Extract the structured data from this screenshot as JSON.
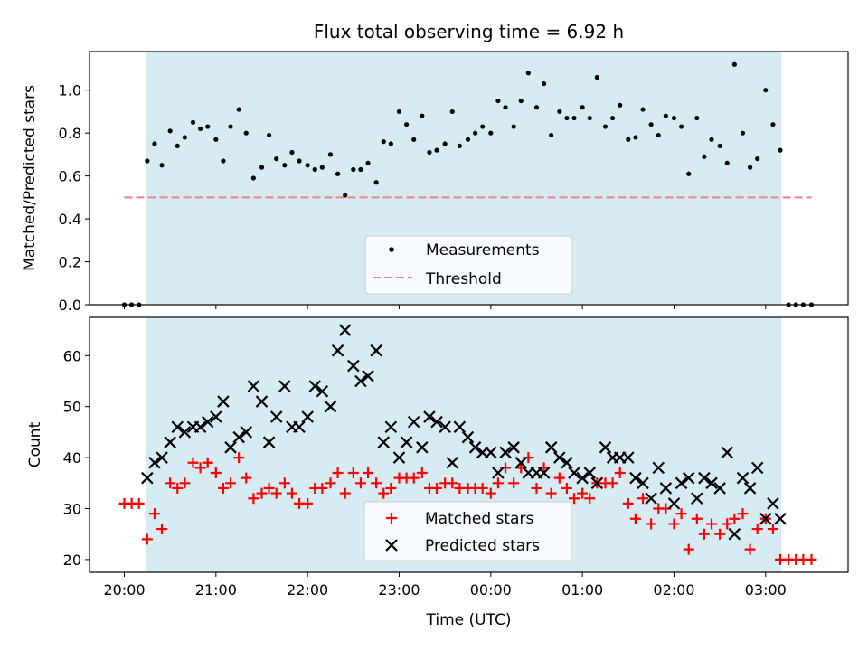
{
  "chart_data": [
    {
      "type": "scatter",
      "title": "Flux total observing time = 6.92 h",
      "xlabel": "",
      "ylabel": "Matched/Predicted stars",
      "ylim": [
        0.0,
        1.18
      ],
      "yticks": [
        0.0,
        0.2,
        0.4,
        0.6,
        0.8,
        1.0
      ],
      "ytick_labels": [
        "0.0",
        "0.2",
        "0.4",
        "0.6",
        "0.8",
        "1.0"
      ],
      "x_unit": "hours since 20:00 UTC",
      "xlim": [
        -0.38,
        7.9
      ],
      "grid": false,
      "legend_position": "lower-center",
      "shaded_region": {
        "x_start": 0.24,
        "x_end": 7.17,
        "color": "#add8e6"
      },
      "threshold": {
        "name": "Threshold",
        "value": 0.5,
        "x_start": 0.0,
        "x_end": 7.5,
        "color": "#f08080"
      },
      "series": [
        {
          "name": "Measurements",
          "color": "#000000",
          "marker": "dot",
          "x": [
            0.0,
            0.08,
            0.16,
            0.25,
            0.33,
            0.41,
            0.5,
            0.58,
            0.66,
            0.75,
            0.83,
            0.91,
            1.0,
            1.08,
            1.16,
            1.25,
            1.33,
            1.41,
            1.5,
            1.58,
            1.66,
            1.75,
            1.83,
            1.91,
            2.0,
            2.08,
            2.16,
            2.25,
            2.33,
            2.41,
            2.5,
            2.58,
            2.66,
            2.75,
            2.83,
            2.91,
            3.0,
            3.08,
            3.16,
            3.25,
            3.33,
            3.41,
            3.5,
            3.58,
            3.66,
            3.75,
            3.83,
            3.91,
            4.0,
            4.08,
            4.16,
            4.25,
            4.33,
            4.41,
            4.5,
            4.58,
            4.66,
            4.75,
            4.83,
            4.91,
            5.0,
            5.08,
            5.16,
            5.25,
            5.33,
            5.41,
            5.5,
            5.58,
            5.66,
            5.75,
            5.83,
            5.91,
            6.0,
            6.08,
            6.16,
            6.25,
            6.33,
            6.41,
            6.5,
            6.58,
            6.66,
            6.75,
            6.83,
            6.91,
            7.0,
            7.08,
            7.16,
            7.25,
            7.33,
            7.41,
            7.5
          ],
          "y": [
            0.0,
            0.0,
            0.0,
            0.67,
            0.75,
            0.65,
            0.81,
            0.74,
            0.78,
            0.85,
            0.82,
            0.83,
            0.77,
            0.67,
            0.83,
            0.91,
            0.8,
            0.59,
            0.64,
            0.79,
            0.68,
            0.65,
            0.71,
            0.67,
            0.65,
            0.63,
            0.64,
            0.7,
            0.61,
            0.51,
            0.63,
            0.63,
            0.66,
            0.57,
            0.76,
            0.75,
            0.9,
            0.84,
            0.77,
            0.88,
            0.71,
            0.72,
            0.75,
            0.9,
            0.74,
            0.77,
            0.8,
            0.83,
            0.8,
            0.95,
            0.92,
            0.83,
            0.95,
            1.08,
            0.92,
            1.03,
            0.79,
            0.9,
            0.87,
            0.87,
            0.92,
            0.87,
            1.06,
            0.83,
            0.87,
            0.93,
            0.77,
            0.78,
            0.91,
            0.84,
            0.79,
            0.88,
            0.87,
            0.83,
            0.61,
            0.87,
            0.69,
            0.77,
            0.74,
            0.66,
            1.12,
            0.8,
            0.64,
            0.68,
            1.0,
            0.84,
            0.72,
            0.0,
            0.0,
            0.0,
            0.0
          ]
        }
      ]
    },
    {
      "type": "scatter",
      "title": "",
      "xlabel": "Time (UTC)",
      "ylabel": "Count",
      "ylim": [
        17.5,
        67.5
      ],
      "yticks": [
        20,
        30,
        40,
        50,
        60
      ],
      "ytick_labels": [
        "20",
        "30",
        "40",
        "50",
        "60"
      ],
      "x_unit": "hours since 20:00 UTC",
      "xlim": [
        -0.38,
        7.9
      ],
      "xticks": [
        0,
        1,
        2,
        3,
        4,
        5,
        6,
        7
      ],
      "xtick_labels": [
        "20:00",
        "21:00",
        "22:00",
        "23:00",
        "00:00",
        "01:00",
        "02:00",
        "03:00"
      ],
      "grid": false,
      "legend_position": "lower-center",
      "shaded_region": {
        "x_start": 0.24,
        "x_end": 7.17,
        "color": "#add8e6"
      },
      "series": [
        {
          "name": "Matched stars",
          "color": "#ff0000",
          "marker": "plus",
          "x": [
            0.0,
            0.08,
            0.16,
            0.25,
            0.33,
            0.41,
            0.5,
            0.58,
            0.66,
            0.75,
            0.83,
            0.91,
            1.0,
            1.08,
            1.16,
            1.25,
            1.33,
            1.41,
            1.5,
            1.58,
            1.66,
            1.75,
            1.83,
            1.91,
            2.0,
            2.08,
            2.16,
            2.25,
            2.33,
            2.41,
            2.5,
            2.58,
            2.66,
            2.75,
            2.83,
            2.91,
            3.0,
            3.08,
            3.16,
            3.25,
            3.33,
            3.41,
            3.5,
            3.58,
            3.66,
            3.75,
            3.83,
            3.91,
            4.0,
            4.08,
            4.16,
            4.25,
            4.33,
            4.41,
            4.5,
            4.58,
            4.66,
            4.75,
            4.83,
            4.91,
            5.0,
            5.08,
            5.16,
            5.25,
            5.33,
            5.41,
            5.5,
            5.58,
            5.66,
            5.75,
            5.83,
            5.91,
            6.0,
            6.08,
            6.16,
            6.25,
            6.33,
            6.41,
            6.5,
            6.58,
            6.66,
            6.75,
            6.83,
            6.91,
            7.0,
            7.08,
            7.16,
            7.25,
            7.33,
            7.41,
            7.5
          ],
          "y": [
            31,
            31,
            31,
            24,
            29,
            26,
            35,
            34,
            35,
            39,
            38,
            39,
            37,
            34,
            35,
            40,
            36,
            32,
            33,
            34,
            33,
            35,
            33,
            31,
            31,
            34,
            34,
            35,
            37,
            33,
            37,
            35,
            37,
            35,
            33,
            34,
            36,
            36,
            36,
            37,
            34,
            34,
            35,
            35,
            34,
            34,
            34,
            34,
            33,
            35,
            38,
            35,
            38,
            40,
            34,
            38,
            33,
            36,
            34,
            32,
            33,
            32,
            35,
            35,
            35,
            37,
            31,
            28,
            32,
            27,
            30,
            30,
            27,
            29,
            22,
            28,
            25,
            27,
            25,
            27,
            28,
            29,
            22,
            26,
            28,
            26,
            20,
            20,
            20,
            20,
            20
          ]
        },
        {
          "name": "Predicted stars",
          "color": "#000000",
          "marker": "x",
          "x": [
            0.25,
            0.33,
            0.41,
            0.5,
            0.58,
            0.66,
            0.75,
            0.83,
            0.91,
            1.0,
            1.08,
            1.16,
            1.25,
            1.33,
            1.41,
            1.5,
            1.58,
            1.66,
            1.75,
            1.83,
            1.91,
            2.0,
            2.08,
            2.16,
            2.25,
            2.33,
            2.41,
            2.5,
            2.58,
            2.66,
            2.75,
            2.83,
            2.91,
            3.0,
            3.08,
            3.16,
            3.25,
            3.33,
            3.41,
            3.5,
            3.58,
            3.66,
            3.75,
            3.83,
            3.91,
            4.0,
            4.08,
            4.16,
            4.25,
            4.33,
            4.41,
            4.5,
            4.58,
            4.66,
            4.75,
            4.83,
            4.91,
            5.0,
            5.08,
            5.16,
            5.25,
            5.33,
            5.41,
            5.5,
            5.58,
            5.66,
            5.75,
            5.83,
            5.91,
            6.0,
            6.08,
            6.16,
            6.25,
            6.33,
            6.41,
            6.5,
            6.58,
            6.66,
            6.75,
            6.83,
            6.91,
            7.0,
            7.08,
            7.16
          ],
          "y": [
            36,
            39,
            40,
            43,
            46,
            45,
            46,
            46,
            47,
            48,
            51,
            42,
            44,
            45,
            54,
            51,
            43,
            48,
            54,
            46,
            46,
            48,
            54,
            53,
            50,
            61,
            65,
            58,
            55,
            56,
            61,
            43,
            46,
            40,
            43,
            47,
            42,
            48,
            47,
            46,
            39,
            46,
            44,
            42,
            41,
            41,
            37,
            41,
            42,
            39,
            37,
            37,
            37,
            42,
            40,
            39,
            37,
            36,
            37,
            35,
            42,
            40,
            40,
            40,
            36,
            35,
            32,
            38,
            34,
            31,
            35,
            36,
            32,
            36,
            35,
            34,
            41,
            25,
            36,
            34,
            38,
            28,
            31,
            28
          ]
        }
      ]
    }
  ]
}
